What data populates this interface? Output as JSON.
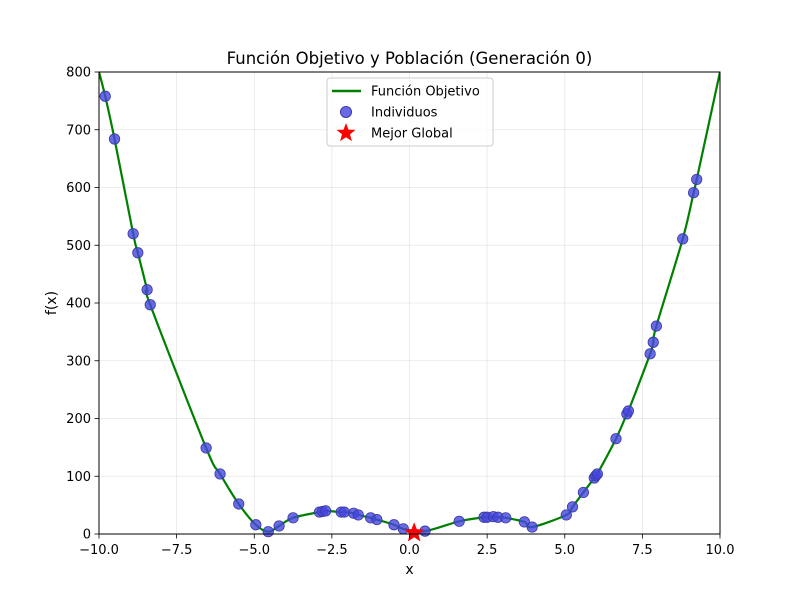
{
  "chart_data": {
    "type": "scatter",
    "title": "Función Objetivo y Población (Generación 0)",
    "xlabel": "x",
    "ylabel": "f(x)",
    "xlim": [
      -10,
      10
    ],
    "ylim": [
      0,
      800
    ],
    "x_ticks": [
      -10,
      -7.5,
      -5,
      -2.5,
      0,
      2.5,
      5,
      7.5,
      10
    ],
    "x_tick_labels": [
      "−10.0",
      "−7.5",
      "−5.0",
      "−2.5",
      "0.0",
      "2.5",
      "5.0",
      "7.5",
      "10.0"
    ],
    "y_ticks": [
      0,
      100,
      200,
      300,
      400,
      500,
      600,
      700,
      800
    ],
    "y_tick_labels": [
      "0",
      "100",
      "200",
      "300",
      "400",
      "500",
      "600",
      "700",
      "800"
    ],
    "grid": true,
    "legend_position": "top-center",
    "colors": {
      "curve": "#008000",
      "points": "#4545e0",
      "point_edge": "#3a3aa0",
      "best": "#ff0000"
    },
    "series": [
      {
        "name": "Función Objetivo",
        "kind": "line"
      },
      {
        "name": "Individuos",
        "kind": "scatter",
        "points": [
          [
            -9.8,
            758
          ],
          [
            -9.5,
            684
          ],
          [
            -8.9,
            520
          ],
          [
            -8.75,
            487
          ],
          [
            -8.45,
            423
          ],
          [
            -8.35,
            397
          ],
          [
            -6.55,
            149
          ],
          [
            -6.1,
            104
          ],
          [
            -5.5,
            52
          ],
          [
            -4.95,
            16
          ],
          [
            -4.55,
            4
          ],
          [
            -4.2,
            14
          ],
          [
            -3.75,
            28
          ],
          [
            -2.9,
            38
          ],
          [
            -2.8,
            39
          ],
          [
            -2.7,
            40
          ],
          [
            -2.2,
            38
          ],
          [
            -2.1,
            38
          ],
          [
            -1.8,
            36
          ],
          [
            -1.65,
            33
          ],
          [
            -1.25,
            28
          ],
          [
            -1.05,
            25
          ],
          [
            -0.5,
            16
          ],
          [
            -0.2,
            9
          ],
          [
            0.5,
            5
          ],
          [
            1.6,
            22
          ],
          [
            2.4,
            29
          ],
          [
            2.5,
            29
          ],
          [
            2.7,
            30
          ],
          [
            2.85,
            29
          ],
          [
            3.1,
            28
          ],
          [
            3.7,
            21
          ],
          [
            3.95,
            12
          ],
          [
            5.05,
            33
          ],
          [
            5.25,
            47
          ],
          [
            5.6,
            72
          ],
          [
            5.95,
            97
          ],
          [
            6.0,
            101
          ],
          [
            6.05,
            104
          ],
          [
            6.65,
            165
          ],
          [
            7.0,
            208
          ],
          [
            7.05,
            213
          ],
          [
            7.75,
            312
          ],
          [
            7.85,
            332
          ],
          [
            7.95,
            360
          ],
          [
            8.8,
            511
          ],
          [
            9.15,
            591
          ],
          [
            9.25,
            614
          ]
        ]
      },
      {
        "name": "Mejor Global",
        "kind": "marker",
        "points": [
          [
            0.15,
            2
          ]
        ]
      }
    ]
  }
}
